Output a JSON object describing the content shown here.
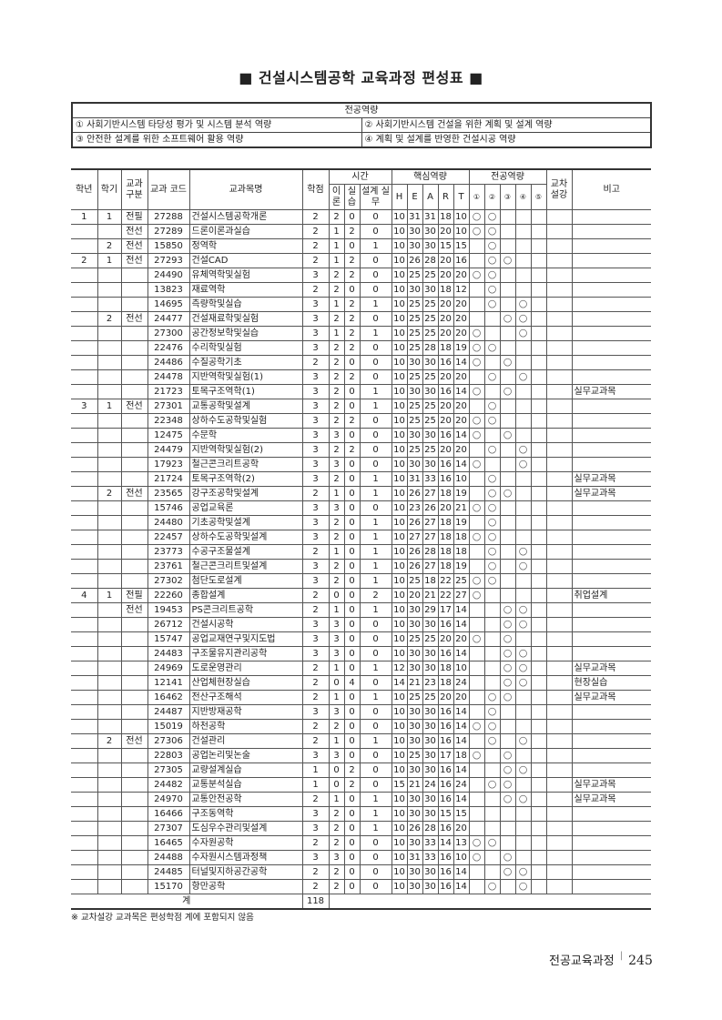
{
  "title": "■ 건설시스템공학 교육과정 편성표 ■",
  "competency": {
    "header": "전공역량",
    "items": [
      "① 사회기반시스템 타당성 평가 및 시스템 분석 역량",
      "② 사회기반시스템 건설을 위한 계획 및 설계 역량",
      "③ 안전한 설계를 위한 소프트웨어 활용 역량",
      "④ 계획 및 설계를 반영한 건설시공 역량"
    ]
  },
  "table": {
    "headers": {
      "grade": "학년",
      "semester": "학기",
      "type": "교과 구분",
      "code": "교과 코드",
      "name": "교과목명",
      "credit": "학점",
      "time": "시간",
      "theory": "이 론",
      "practice": "실 습",
      "design": "설계 실무",
      "core": "핵심역량",
      "H": "H",
      "E": "E",
      "A": "A",
      "R": "R",
      "T": "T",
      "major": "전공역량",
      "m1": "①",
      "m2": "②",
      "m3": "③",
      "m4": "④",
      "m5": "⑤",
      "cross": "교차 설강",
      "remark": "비고"
    },
    "circle": "○",
    "rows": [
      [
        "1",
        "1",
        "전필",
        "27288",
        "건설시스템공학개론",
        "2",
        "2",
        "0",
        "0",
        "10",
        "31",
        "31",
        "18",
        "10",
        [
          1,
          2
        ],
        ""
      ],
      [
        "",
        "",
        "전선",
        "27289",
        "드론이론과실습",
        "2",
        "1",
        "2",
        "0",
        "10",
        "30",
        "30",
        "20",
        "10",
        [
          1,
          2
        ],
        ""
      ],
      [
        "",
        "2",
        "전선",
        "15850",
        "정역학",
        "2",
        "1",
        "0",
        "1",
        "10",
        "30",
        "30",
        "15",
        "15",
        [
          2
        ],
        ""
      ],
      [
        "2",
        "1",
        "전선",
        "27293",
        "건설CAD",
        "2",
        "1",
        "2",
        "0",
        "10",
        "26",
        "28",
        "20",
        "16",
        [
          2,
          3
        ],
        ""
      ],
      [
        "",
        "",
        "",
        "24490",
        "유체역학및실험",
        "3",
        "2",
        "2",
        "0",
        "10",
        "25",
        "25",
        "20",
        "20",
        [
          1,
          2
        ],
        ""
      ],
      [
        "",
        "",
        "",
        "13823",
        "재료역학",
        "2",
        "2",
        "0",
        "0",
        "10",
        "30",
        "30",
        "18",
        "12",
        [
          2
        ],
        ""
      ],
      [
        "",
        "",
        "",
        "14695",
        "측량학및실습",
        "3",
        "1",
        "2",
        "1",
        "10",
        "25",
        "25",
        "20",
        "20",
        [
          2,
          4
        ],
        ""
      ],
      [
        "",
        "2",
        "전선",
        "24477",
        "건설재료학및실험",
        "3",
        "2",
        "2",
        "0",
        "10",
        "25",
        "25",
        "20",
        "20",
        [
          3,
          4
        ],
        ""
      ],
      [
        "",
        "",
        "",
        "27300",
        "공간정보학및실습",
        "3",
        "1",
        "2",
        "1",
        "10",
        "25",
        "25",
        "20",
        "20",
        [
          1,
          4
        ],
        ""
      ],
      [
        "",
        "",
        "",
        "22476",
        "수리학및실험",
        "3",
        "2",
        "2",
        "0",
        "10",
        "25",
        "28",
        "18",
        "19",
        [
          1,
          2
        ],
        ""
      ],
      [
        "",
        "",
        "",
        "24486",
        "수질공학기초",
        "2",
        "2",
        "0",
        "0",
        "10",
        "30",
        "30",
        "16",
        "14",
        [
          1,
          3
        ],
        ""
      ],
      [
        "",
        "",
        "",
        "24478",
        "지반역학및실험(1)",
        "3",
        "2",
        "2",
        "0",
        "10",
        "25",
        "25",
        "20",
        "20",
        [
          2,
          4
        ],
        ""
      ],
      [
        "",
        "",
        "",
        "21723",
        "토목구조역학(1)",
        "3",
        "2",
        "0",
        "1",
        "10",
        "30",
        "30",
        "16",
        "14",
        [
          1,
          3
        ],
        "실무교과목"
      ],
      [
        "3",
        "1",
        "전선",
        "27301",
        "교통공학및설계",
        "3",
        "2",
        "0",
        "1",
        "10",
        "25",
        "25",
        "20",
        "20",
        [
          2
        ],
        ""
      ],
      [
        "",
        "",
        "",
        "22348",
        "상하수도공학및실험",
        "3",
        "2",
        "2",
        "0",
        "10",
        "25",
        "25",
        "20",
        "20",
        [
          1,
          2
        ],
        ""
      ],
      [
        "",
        "",
        "",
        "12475",
        "수문학",
        "3",
        "3",
        "0",
        "0",
        "10",
        "30",
        "30",
        "16",
        "14",
        [
          1,
          3
        ],
        ""
      ],
      [
        "",
        "",
        "",
        "24479",
        "지반역학및실험(2)",
        "3",
        "2",
        "2",
        "0",
        "10",
        "25",
        "25",
        "20",
        "20",
        [
          2,
          4
        ],
        ""
      ],
      [
        "",
        "",
        "",
        "17923",
        "철근콘크리트공학",
        "3",
        "3",
        "0",
        "0",
        "10",
        "30",
        "30",
        "16",
        "14",
        [
          1,
          4
        ],
        ""
      ],
      [
        "",
        "",
        "",
        "21724",
        "토목구조역학(2)",
        "3",
        "2",
        "0",
        "1",
        "10",
        "31",
        "33",
        "16",
        "10",
        [
          2
        ],
        "실무교과목"
      ],
      [
        "",
        "2",
        "전선",
        "23565",
        "강구조공학및설계",
        "2",
        "1",
        "0",
        "1",
        "10",
        "26",
        "27",
        "18",
        "19",
        [
          2,
          3
        ],
        "실무교과목"
      ],
      [
        "",
        "",
        "",
        "15746",
        "공업교육론",
        "3",
        "3",
        "0",
        "0",
        "10",
        "23",
        "26",
        "20",
        "21",
        [
          1,
          2
        ],
        ""
      ],
      [
        "",
        "",
        "",
        "24480",
        "기초공학및설계",
        "3",
        "2",
        "0",
        "1",
        "10",
        "26",
        "27",
        "18",
        "19",
        [
          2
        ],
        ""
      ],
      [
        "",
        "",
        "",
        "22457",
        "상하수도공학및설계",
        "3",
        "2",
        "0",
        "1",
        "10",
        "27",
        "27",
        "18",
        "18",
        [
          1,
          2
        ],
        ""
      ],
      [
        "",
        "",
        "",
        "23773",
        "수공구조물설계",
        "2",
        "1",
        "0",
        "1",
        "10",
        "26",
        "28",
        "18",
        "18",
        [
          2,
          4
        ],
        ""
      ],
      [
        "",
        "",
        "",
        "23761",
        "철근콘크리트및설계",
        "3",
        "2",
        "0",
        "1",
        "10",
        "26",
        "27",
        "18",
        "19",
        [
          2,
          4
        ],
        ""
      ],
      [
        "",
        "",
        "",
        "27302",
        "첨단도로설계",
        "3",
        "2",
        "0",
        "1",
        "10",
        "25",
        "18",
        "22",
        "25",
        [
          1,
          2
        ],
        ""
      ],
      [
        "4",
        "1",
        "전필",
        "22260",
        "종합설계",
        "2",
        "0",
        "0",
        "2",
        "10",
        "20",
        "21",
        "22",
        "27",
        [
          1
        ],
        "취업설계"
      ],
      [
        "",
        "",
        "전선",
        "19453",
        "PS콘크리트공학",
        "2",
        "1",
        "0",
        "1",
        "10",
        "30",
        "29",
        "17",
        "14",
        [
          3,
          4
        ],
        ""
      ],
      [
        "",
        "",
        "",
        "26712",
        "건설시공학",
        "3",
        "3",
        "0",
        "0",
        "10",
        "30",
        "30",
        "16",
        "14",
        [
          3,
          4
        ],
        ""
      ],
      [
        "",
        "",
        "",
        "15747",
        "공업교재연구및지도법",
        "3",
        "3",
        "0",
        "0",
        "10",
        "25",
        "25",
        "20",
        "20",
        [
          1,
          3
        ],
        ""
      ],
      [
        "",
        "",
        "",
        "24483",
        "구조물유지관리공학",
        "3",
        "3",
        "0",
        "0",
        "10",
        "30",
        "30",
        "16",
        "14",
        [
          3,
          4
        ],
        ""
      ],
      [
        "",
        "",
        "",
        "24969",
        "도로운영관리",
        "2",
        "1",
        "0",
        "1",
        "12",
        "30",
        "30",
        "18",
        "10",
        [
          3,
          4
        ],
        "실무교과목"
      ],
      [
        "",
        "",
        "",
        "12141",
        "산업체현장실습",
        "2",
        "0",
        "4",
        "0",
        "14",
        "21",
        "23",
        "18",
        "24",
        [
          3,
          4
        ],
        "현장실습"
      ],
      [
        "",
        "",
        "",
        "16462",
        "전산구조해석",
        "2",
        "1",
        "0",
        "1",
        "10",
        "25",
        "25",
        "20",
        "20",
        [
          2,
          3
        ],
        "실무교과목"
      ],
      [
        "",
        "",
        "",
        "24487",
        "지반방재공학",
        "3",
        "3",
        "0",
        "0",
        "10",
        "30",
        "30",
        "16",
        "14",
        [
          2
        ],
        ""
      ],
      [
        "",
        "",
        "",
        "15019",
        "하천공학",
        "2",
        "2",
        "0",
        "0",
        "10",
        "30",
        "30",
        "16",
        "14",
        [
          1,
          2
        ],
        ""
      ],
      [
        "",
        "2",
        "전선",
        "27306",
        "건설관리",
        "2",
        "1",
        "0",
        "1",
        "10",
        "30",
        "30",
        "16",
        "14",
        [
          2,
          4
        ],
        ""
      ],
      [
        "",
        "",
        "",
        "22803",
        "공업논리및논술",
        "3",
        "3",
        "0",
        "0",
        "10",
        "25",
        "30",
        "17",
        "18",
        [
          1,
          3
        ],
        ""
      ],
      [
        "",
        "",
        "",
        "27305",
        "교량설계실습",
        "1",
        "0",
        "2",
        "0",
        "10",
        "30",
        "30",
        "16",
        "14",
        [
          3,
          4
        ],
        ""
      ],
      [
        "",
        "",
        "",
        "24482",
        "교통분석실습",
        "1",
        "0",
        "2",
        "0",
        "15",
        "21",
        "24",
        "16",
        "24",
        [
          2,
          3
        ],
        "실무교과목"
      ],
      [
        "",
        "",
        "",
        "24970",
        "교통안전공학",
        "2",
        "1",
        "0",
        "1",
        "10",
        "30",
        "30",
        "16",
        "14",
        [
          3,
          4
        ],
        "실무교과목"
      ],
      [
        "",
        "",
        "",
        "16466",
        "구조동역학",
        "3",
        "2",
        "0",
        "1",
        "10",
        "30",
        "30",
        "15",
        "15",
        [],
        ""
      ],
      [
        "",
        "",
        "",
        "27307",
        "도심우수관리및설계",
        "3",
        "2",
        "0",
        "1",
        "10",
        "26",
        "28",
        "16",
        "20",
        [],
        ""
      ],
      [
        "",
        "",
        "",
        "16465",
        "수자원공학",
        "2",
        "2",
        "0",
        "0",
        "10",
        "30",
        "33",
        "14",
        "13",
        [
          1,
          2
        ],
        ""
      ],
      [
        "",
        "",
        "",
        "24488",
        "수자원시스템과정책",
        "3",
        "3",
        "0",
        "0",
        "10",
        "31",
        "33",
        "16",
        "10",
        [
          1,
          3
        ],
        ""
      ],
      [
        "",
        "",
        "",
        "24485",
        "터널및지하공간공학",
        "2",
        "2",
        "0",
        "0",
        "10",
        "30",
        "30",
        "16",
        "14",
        [
          3,
          4
        ],
        ""
      ],
      [
        "",
        "",
        "",
        "15170",
        "항만공학",
        "2",
        "2",
        "0",
        "0",
        "10",
        "30",
        "30",
        "16",
        "14",
        [
          2,
          4
        ],
        ""
      ]
    ],
    "total_label": "계",
    "total_credit": "118"
  },
  "note": "※ 교차설강 교과목은 편성학점 계에 포함되지 않음",
  "footer": {
    "section": "전공교육과정",
    "page": "245"
  }
}
